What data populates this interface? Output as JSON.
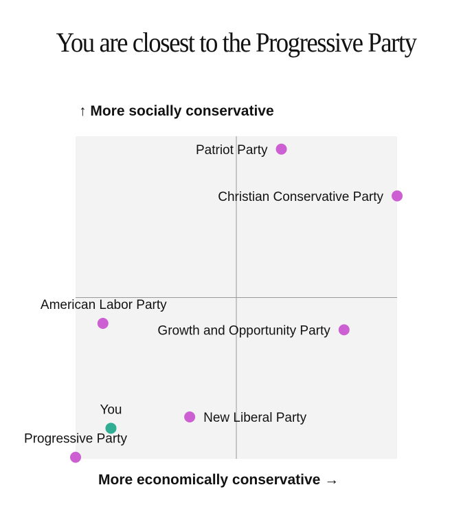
{
  "title": "You are closest to the Progressive Party",
  "chart_data": {
    "type": "scatter",
    "ylabel": "↑ More socially conservative",
    "xlabel": "More economically conservative →",
    "xlim": [
      -1,
      1
    ],
    "ylim": [
      -1,
      1
    ],
    "grid": "center crosshair",
    "colors": {
      "party": "#cc5fd1",
      "you": "#2fae93",
      "plot_bg": "#f3f3f3",
      "axis": "#999999"
    },
    "points": [
      {
        "label": "Patriot Party",
        "x": 0.28,
        "y": 0.92,
        "kind": "party",
        "label_pos": "left"
      },
      {
        "label": "Christian Conservative Party",
        "x": 1.0,
        "y": 0.63,
        "kind": "party",
        "label_pos": "left"
      },
      {
        "label": "American Labor Party",
        "x": -0.83,
        "y": -0.16,
        "kind": "party",
        "label_pos": "above"
      },
      {
        "label": "Growth and Opportunity Party",
        "x": 0.67,
        "y": -0.2,
        "kind": "party",
        "label_pos": "left"
      },
      {
        "label": "New Liberal Party",
        "x": -0.29,
        "y": -0.74,
        "kind": "party",
        "label_pos": "right"
      },
      {
        "label": "You",
        "x": -0.78,
        "y": -0.81,
        "kind": "you",
        "label_pos": "above"
      },
      {
        "label": "Progressive Party",
        "x": -1.0,
        "y": -0.99,
        "kind": "party",
        "label_pos": "above"
      }
    ]
  }
}
